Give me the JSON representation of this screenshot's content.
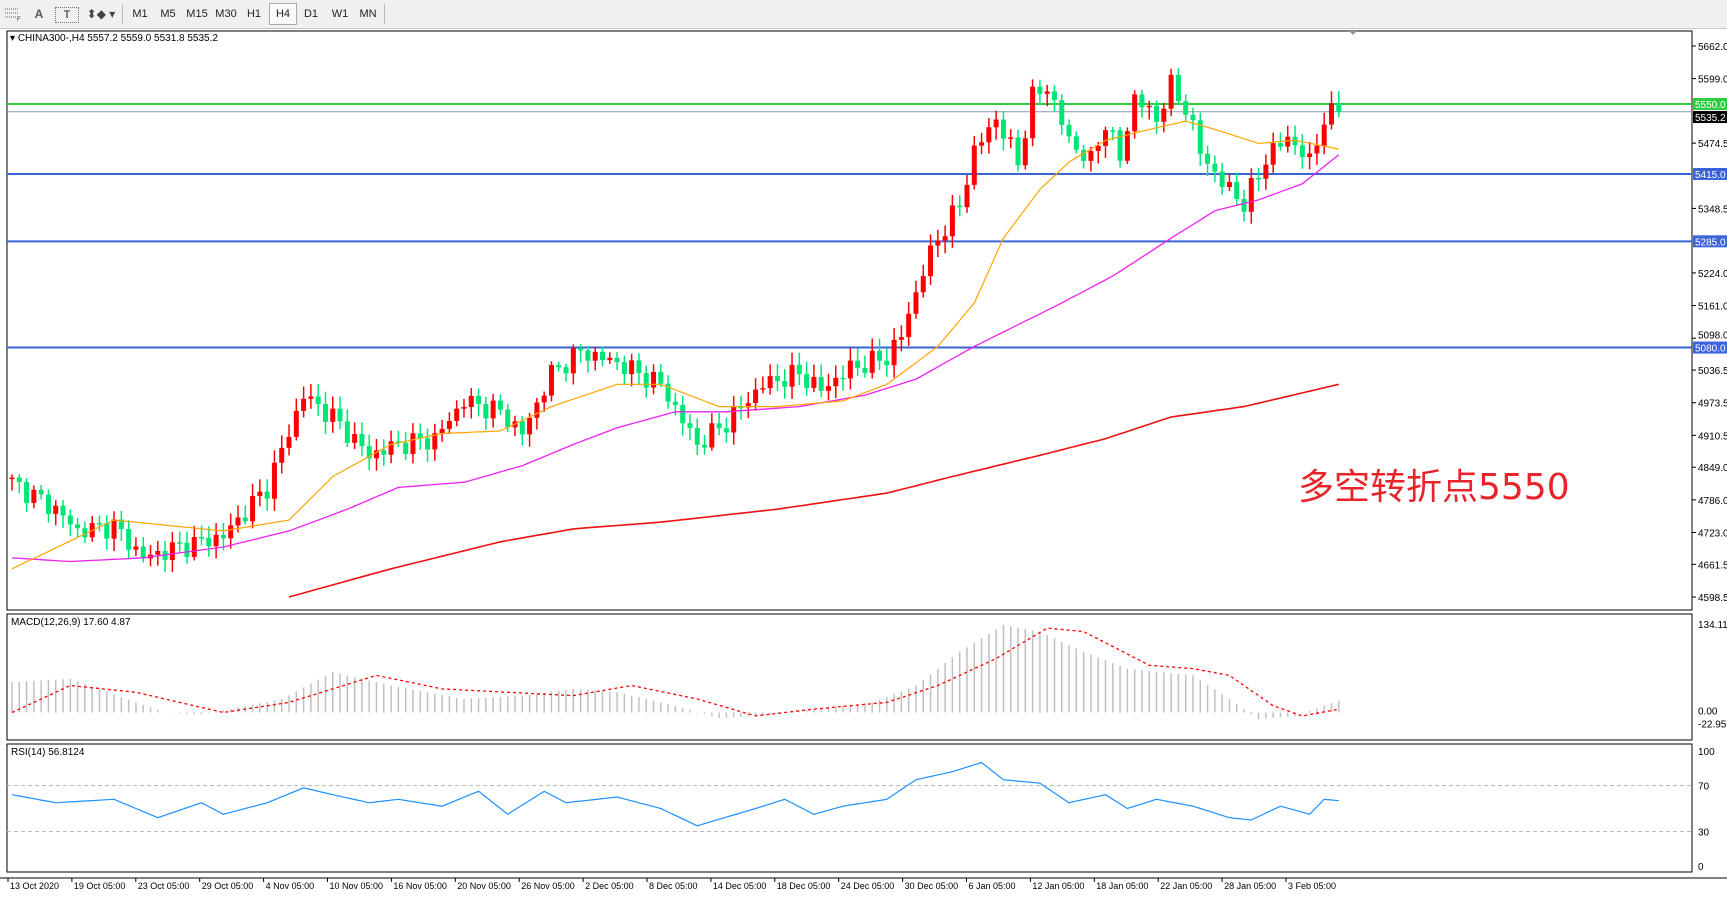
{
  "toolbar": {
    "tools": [
      "crosshair-grid",
      "A",
      "T",
      "arrows"
    ],
    "timeframes": [
      "M1",
      "M5",
      "M15",
      "M30",
      "H1",
      "H4",
      "D1",
      "W1",
      "MN"
    ],
    "active_timeframe": "H4"
  },
  "chart": {
    "header": "CHINA300-,H4  5557.2 5559.0 5531.8 5535.2",
    "annotation": "多空转折点5550",
    "price_ticks": [
      "5662.0",
      "5599.0",
      "5474.5",
      "5348.5",
      "5224.0",
      "5161.0",
      "5098.0",
      "5036.5",
      "4973.5",
      "4910.5",
      "4849.0",
      "4786.0",
      "4723.0",
      "4661.5",
      "4598.5"
    ],
    "price_range": [
      4598.5,
      5662.0
    ],
    "levels": [
      {
        "value": "5550.0",
        "color": "#2ecc40"
      },
      {
        "value": "5415.0",
        "color": "#3b63d9"
      },
      {
        "value": "5285.0",
        "color": "#3b63d9"
      },
      {
        "value": "5080.0",
        "color": "#3b63d9"
      }
    ],
    "current_price": "5535.2",
    "colors": {
      "up": "#ff0000",
      "down": "#00e676",
      "ma_fast": "#ffa500",
      "ma_mid": "#ee22ee",
      "ma_slow": "#ee1111"
    },
    "time_labels": [
      "13 Oct 2020",
      "19 Oct 05:00",
      "23 Oct 05:00",
      "29 Oct 05:00",
      "4 Nov 05:00",
      "10 Nov 05:00",
      "16 Nov 05:00",
      "20 Nov 05:00",
      "26 Nov 05:00",
      "2 Dec 05:00",
      "8 Dec 05:00",
      "14 Dec 05:00",
      "18 Dec 05:00",
      "24 Dec 05:00",
      "30 Dec 05:00",
      "6 Jan 05:00",
      "12 Jan 05:00",
      "18 Jan 05:00",
      "22 Jan 05:00",
      "28 Jan 05:00",
      "3 Feb 05:00"
    ]
  },
  "chart_data": {
    "type": "candlestick",
    "bars": 183,
    "close_keypoints": [
      [
        0,
        4820
      ],
      [
        6,
        4768
      ],
      [
        9,
        4726
      ],
      [
        14,
        4736
      ],
      [
        18,
        4674
      ],
      [
        23,
        4695
      ],
      [
        29,
        4716
      ],
      [
        35,
        4810
      ],
      [
        40,
        4988
      ],
      [
        44,
        4946
      ],
      [
        49,
        4872
      ],
      [
        53,
        4893
      ],
      [
        58,
        4904
      ],
      [
        62,
        4977
      ],
      [
        67,
        4956
      ],
      [
        70,
        4914
      ],
      [
        74,
        5030
      ],
      [
        78,
        5072
      ],
      [
        83,
        5051
      ],
      [
        89,
        5009
      ],
      [
        94,
        4893
      ],
      [
        98,
        4935
      ],
      [
        103,
        5009
      ],
      [
        108,
        5030
      ],
      [
        111,
        4998
      ],
      [
        115,
        5040
      ],
      [
        120,
        5061
      ],
      [
        122,
        5103
      ],
      [
        125,
        5228
      ],
      [
        127,
        5291
      ],
      [
        130,
        5354
      ],
      [
        132,
        5459
      ],
      [
        135,
        5522
      ],
      [
        138,
        5438
      ],
      [
        140,
        5563
      ],
      [
        142,
        5584
      ],
      [
        145,
        5480
      ],
      [
        148,
        5438
      ],
      [
        150,
        5515
      ],
      [
        152,
        5445
      ],
      [
        154,
        5563
      ],
      [
        157,
        5522
      ],
      [
        159,
        5584
      ],
      [
        161,
        5543
      ],
      [
        163,
        5459
      ],
      [
        166,
        5396
      ],
      [
        168,
        5375
      ],
      [
        169,
        5354
      ],
      [
        172,
        5445
      ],
      [
        175,
        5487
      ],
      [
        178,
        5438
      ],
      [
        180,
        5522
      ],
      [
        182,
        5535.2
      ]
    ],
    "ma_fast": [
      [
        0,
        4653
      ],
      [
        14,
        4747
      ],
      [
        29,
        4726
      ],
      [
        38,
        4747
      ],
      [
        44,
        4831
      ],
      [
        52,
        4893
      ],
      [
        59,
        4914
      ],
      [
        67,
        4919
      ],
      [
        74,
        4966
      ],
      [
        83,
        5009
      ],
      [
        89,
        5009
      ],
      [
        97,
        4966
      ],
      [
        105,
        4966
      ],
      [
        114,
        4977
      ],
      [
        120,
        5009
      ],
      [
        127,
        5082
      ],
      [
        132,
        5166
      ],
      [
        136,
        5291
      ],
      [
        141,
        5385
      ],
      [
        145,
        5438
      ],
      [
        150,
        5480
      ],
      [
        156,
        5501
      ],
      [
        161,
        5517
      ],
      [
        165,
        5501
      ],
      [
        171,
        5474
      ],
      [
        176,
        5480
      ],
      [
        182,
        5463
      ]
    ],
    "ma_mid": [
      [
        0,
        4674
      ],
      [
        8,
        4667
      ],
      [
        18,
        4674
      ],
      [
        29,
        4695
      ],
      [
        38,
        4726
      ],
      [
        46,
        4768
      ],
      [
        53,
        4810
      ],
      [
        62,
        4820
      ],
      [
        70,
        4852
      ],
      [
        77,
        4893
      ],
      [
        83,
        4925
      ],
      [
        91,
        4956
      ],
      [
        98,
        4956
      ],
      [
        108,
        4966
      ],
      [
        117,
        4988
      ],
      [
        124,
        5019
      ],
      [
        132,
        5082
      ],
      [
        138,
        5124
      ],
      [
        144,
        5166
      ],
      [
        151,
        5218
      ],
      [
        159,
        5291
      ],
      [
        165,
        5344
      ],
      [
        171,
        5365
      ],
      [
        177,
        5396
      ],
      [
        182,
        5452
      ]
    ],
    "ma_slow": [
      [
        38,
        4598.5
      ],
      [
        52,
        4653
      ],
      [
        67,
        4705
      ],
      [
        77,
        4730
      ],
      [
        89,
        4743
      ],
      [
        105,
        4768
      ],
      [
        120,
        4799
      ],
      [
        129,
        4831
      ],
      [
        141,
        4872
      ],
      [
        150,
        4904
      ],
      [
        159,
        4946
      ],
      [
        169,
        4966
      ],
      [
        182,
        5009
      ]
    ],
    "macd": {
      "label": "MACD(12,26,9) 17.60 4.87",
      "ticks": [
        "134.11",
        "0.00",
        "-22.95"
      ],
      "range": [
        -22.95,
        134.11
      ],
      "histogram": [
        [
          0,
          45
        ],
        [
          8,
          50
        ],
        [
          17,
          15
        ],
        [
          21,
          0
        ],
        [
          26,
          -3
        ],
        [
          37,
          20
        ],
        [
          44,
          60
        ],
        [
          52,
          40
        ],
        [
          62,
          20
        ],
        [
          70,
          25
        ],
        [
          77,
          35
        ],
        [
          83,
          30
        ],
        [
          91,
          10
        ],
        [
          97,
          -8
        ],
        [
          103,
          -5
        ],
        [
          110,
          5
        ],
        [
          118,
          15
        ],
        [
          124,
          40
        ],
        [
          130,
          90
        ],
        [
          136,
          130
        ],
        [
          141,
          120
        ],
        [
          147,
          90
        ],
        [
          153,
          65
        ],
        [
          162,
          55
        ],
        [
          167,
          20
        ],
        [
          171,
          -10
        ],
        [
          176,
          -5
        ],
        [
          182,
          17.6
        ]
      ],
      "signal": [
        [
          0,
          0
        ],
        [
          8,
          40
        ],
        [
          17,
          30
        ],
        [
          29,
          0
        ],
        [
          38,
          15
        ],
        [
          50,
          55
        ],
        [
          59,
          35
        ],
        [
          68,
          30
        ],
        [
          77,
          25
        ],
        [
          85,
          40
        ],
        [
          94,
          20
        ],
        [
          102,
          -5
        ],
        [
          110,
          5
        ],
        [
          120,
          15
        ],
        [
          127,
          40
        ],
        [
          135,
          80
        ],
        [
          142,
          125
        ],
        [
          147,
          120
        ],
        [
          156,
          70
        ],
        [
          162,
          65
        ],
        [
          167,
          55
        ],
        [
          173,
          10
        ],
        [
          177,
          -5
        ],
        [
          182,
          4.87
        ]
      ]
    },
    "rsi": {
      "label": "RSI(14) 56.8124",
      "ticks": [
        "100",
        "70",
        "30",
        "0"
      ],
      "levels": [
        70,
        30
      ],
      "values": [
        [
          0,
          62
        ],
        [
          6,
          55
        ],
        [
          14,
          58
        ],
        [
          20,
          42
        ],
        [
          26,
          55
        ],
        [
          29,
          45
        ],
        [
          35,
          55
        ],
        [
          40,
          68
        ],
        [
          44,
          62
        ],
        [
          49,
          55
        ],
        [
          53,
          58
        ],
        [
          59,
          52
        ],
        [
          64,
          65
        ],
        [
          68,
          45
        ],
        [
          73,
          65
        ],
        [
          76,
          55
        ],
        [
          83,
          60
        ],
        [
          89,
          50
        ],
        [
          94,
          35
        ],
        [
          102,
          50
        ],
        [
          106,
          58
        ],
        [
          110,
          45
        ],
        [
          114,
          52
        ],
        [
          120,
          58
        ],
        [
          124,
          75
        ],
        [
          129,
          82
        ],
        [
          133,
          90
        ],
        [
          136,
          75
        ],
        [
          141,
          72
        ],
        [
          145,
          55
        ],
        [
          150,
          62
        ],
        [
          153,
          50
        ],
        [
          157,
          58
        ],
        [
          162,
          52
        ],
        [
          167,
          42
        ],
        [
          170,
          40
        ],
        [
          174,
          52
        ],
        [
          178,
          45
        ],
        [
          180,
          58
        ],
        [
          182,
          56.8
        ]
      ]
    }
  }
}
